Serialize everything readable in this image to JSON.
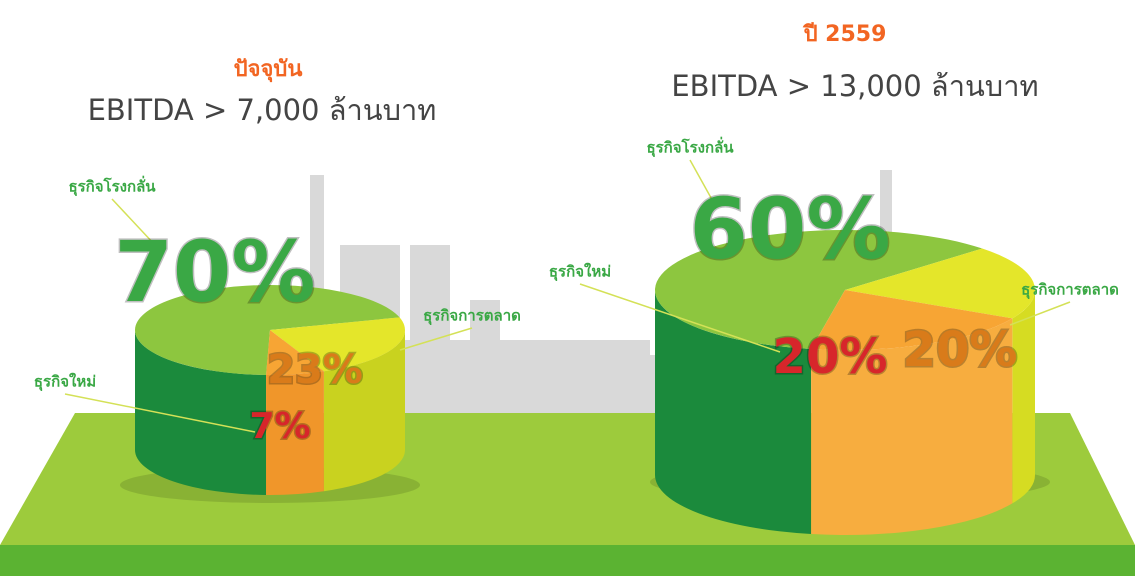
{
  "chart_data": [
    {
      "type": "pie3d",
      "title": "ปัจจุบัน",
      "subtitle": "EBITDA > 7,000 ล้านบาท",
      "categories": [
        "ธุรกิจโรงกลั่น",
        "ธุรกิจการตลาด",
        "ธุรกิจใหม่"
      ],
      "values": [
        70,
        23,
        7
      ],
      "value_labels": [
        "70%",
        "23%",
        "7%"
      ],
      "colors": [
        "#8dc63f",
        "#e4e62a",
        "#f7a534"
      ],
      "side_colors": [
        "#1b8a3c",
        "#c9d21f",
        "#f0962a"
      ],
      "label_colors": [
        "#3aa845",
        "#d97b1a",
        "#d7262b"
      ]
    },
    {
      "type": "pie3d",
      "title": "ปี 2559",
      "subtitle": "EBITDA > 13,000 ล้านบาท",
      "categories": [
        "ธุรกิจโรงกลั่น",
        "ธุรกิจการตลาด",
        "ธุรกิจใหม่"
      ],
      "values": [
        60,
        20,
        20
      ],
      "value_labels": [
        "60%",
        "20%",
        "20%"
      ],
      "colors": [
        "#8dc63f",
        "#e4e62a",
        "#f7a534"
      ],
      "side_colors": [
        "#1b8a3c",
        "#d6dc22",
        "#f7ad3f"
      ],
      "label_colors": [
        "#3aa845",
        "#d97b1a",
        "#d7262b"
      ]
    }
  ]
}
